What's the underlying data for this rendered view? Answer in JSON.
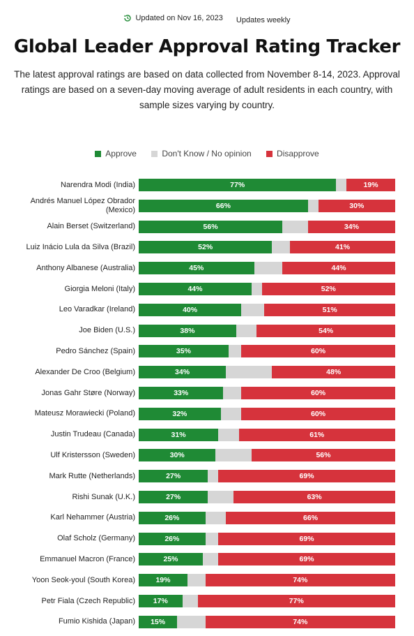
{
  "header": {
    "updated": "Updated on Nov 16, 2023",
    "frequency": "Updates weekly",
    "updated_icon": "refresh-icon"
  },
  "title": "Global Leader Approval Rating Tracker",
  "subtitle": "The latest approval ratings are based on data collected from November 8-14, 2023. Approval ratings are based on a seven-day moving average of adult residents in each country, with sample sizes varying by country.",
  "legend": [
    {
      "label": "Approve",
      "color": "#1f8a35"
    },
    {
      "label": "Don't Know / No opinion",
      "color": "#d6d6d6"
    },
    {
      "label": "Disapprove",
      "color": "#d6333c"
    }
  ],
  "chart_data": {
    "type": "bar",
    "stacked": true,
    "orientation": "horizontal",
    "categories": [
      "Narendra Modi (India)",
      "Andrés Manuel López Obrador (Mexico)",
      "Alain Berset (Switzerland)",
      "Luiz Inácio Lula da Silva (Brazil)",
      "Anthony Albanese (Australia)",
      "Giorgia Meloni (Italy)",
      "Leo Varadkar (Ireland)",
      "Joe Biden (U.S.)",
      "Pedro Sánchez (Spain)",
      "Alexander De Croo (Belgium)",
      "Jonas Gahr Støre (Norway)",
      "Mateusz Morawiecki (Poland)",
      "Justin Trudeau (Canada)",
      "Ulf Kristersson (Sweden)",
      "Mark Rutte (Netherlands)",
      "Rishi Sunak (U.K.)",
      "Karl Nehammer (Austria)",
      "Olaf Scholz (Germany)",
      "Emmanuel Macron (France)",
      "Yoon Seok-youl (South Korea)",
      "Petr Fiala (Czech Republic)",
      "Fumio Kishida (Japan)"
    ],
    "series": [
      {
        "name": "Approve",
        "values": [
          77,
          66,
          56,
          52,
          45,
          44,
          40,
          38,
          35,
          34,
          33,
          32,
          31,
          30,
          27,
          27,
          26,
          26,
          25,
          19,
          17,
          15
        ]
      },
      {
        "name": "Disapprove",
        "values": [
          19,
          30,
          34,
          41,
          44,
          52,
          51,
          54,
          60,
          48,
          60,
          60,
          61,
          56,
          69,
          63,
          66,
          69,
          69,
          74,
          77,
          74
        ]
      }
    ],
    "xlim": [
      0,
      100
    ],
    "unit": "%"
  }
}
